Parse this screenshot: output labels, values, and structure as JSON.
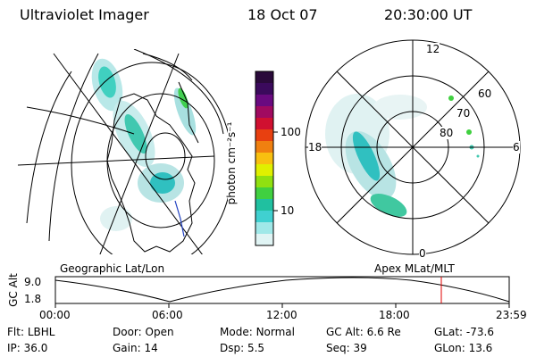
{
  "header": {
    "instrument": "Ultraviolet Imager",
    "date": "18 Oct 07",
    "time": "20:30:00 UT"
  },
  "colorbar": {
    "unit_label": "photon cm⁻²s⁻¹",
    "ticks": [
      "100",
      "10"
    ],
    "colors": [
      "#2a0a3a",
      "#3b0a5c",
      "#6a0a80",
      "#a00a60",
      "#d01030",
      "#e84010",
      "#f08010",
      "#f8c010",
      "#e0f000",
      "#90e010",
      "#40d040",
      "#20c0a0",
      "#40d0d0",
      "#a0e8e8",
      "#e0f4f4"
    ]
  },
  "maps": {
    "left_label": "Geographic Lat/Lon",
    "right_label": "Apex MLat/MLT",
    "polar_mlt": {
      "top": "12",
      "left": "18",
      "right": "6",
      "bottom": "0"
    },
    "polar_mlat": [
      "60",
      "70",
      "80"
    ]
  },
  "timeline": {
    "ylabel": "GC Alt",
    "ymax": "9.0",
    "ymin": "1.8",
    "xticks": [
      "00:00",
      "06:00",
      "12:00",
      "18:00",
      "23:59"
    ],
    "marker_color": "#e00000"
  },
  "info": {
    "row1": [
      {
        "key": "Flt:",
        "value": "LBHL"
      },
      {
        "key": "Door:",
        "value": "Open"
      },
      {
        "key": "Mode:",
        "value": "Normal"
      },
      {
        "key": "GC Alt:",
        "value": "6.6 Re"
      },
      {
        "key": "GLat:",
        "value": "-73.6"
      }
    ],
    "row2": [
      {
        "key": "IP:",
        "value": "36.0"
      },
      {
        "key": "Gain:",
        "value": "14"
      },
      {
        "key": "Dsp:",
        "value": "5.5"
      },
      {
        "key": "Seq:",
        "value": "39"
      },
      {
        "key": "GLon:",
        "value": "13.6"
      }
    ]
  }
}
